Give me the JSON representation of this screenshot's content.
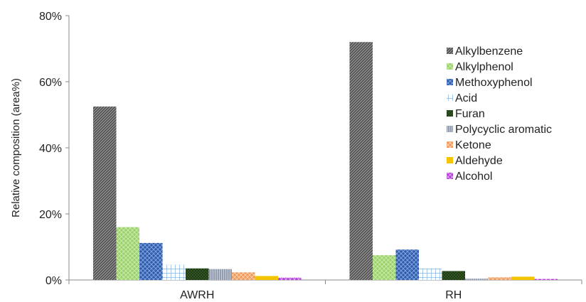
{
  "chart_data": {
    "type": "bar",
    "title": "",
    "xlabel": "",
    "ylabel": "Relative  composition (area%)",
    "ylim": [
      0,
      80
    ],
    "yticks": [
      "0%",
      "20%",
      "40%",
      "60%",
      "80%"
    ],
    "categories": [
      "AWRH",
      "RH"
    ],
    "legend_position": "right",
    "grid": false,
    "series": [
      {
        "name": "Alkylbenzene",
        "color": "#8c8c8c",
        "pattern": "diagonal-dark",
        "values": [
          52.5,
          72.0
        ]
      },
      {
        "name": "Alkylphenol",
        "color": "#9bd06a",
        "pattern": "crosshatch",
        "values": [
          16.0,
          7.5
        ]
      },
      {
        "name": "Methoxyphenol",
        "color": "#2f5aa8",
        "pattern": "diamond",
        "values": [
          11.2,
          9.2
        ]
      },
      {
        "name": "Acid",
        "color": "#9fc8ee",
        "pattern": "grid",
        "values": [
          4.6,
          3.5
        ]
      },
      {
        "name": "Furan",
        "color": "#1f3d14",
        "pattern": "dots",
        "values": [
          3.5,
          2.7
        ]
      },
      {
        "name": "Polycyclic aromatic",
        "color": "#8e9aae",
        "pattern": "vertical",
        "values": [
          3.3,
          0.4
        ]
      },
      {
        "name": "Ketone",
        "color": "#f0995a",
        "pattern": "crosshatch",
        "values": [
          2.3,
          0.8
        ]
      },
      {
        "name": "Aldehyde",
        "color": "#f5c400",
        "pattern": "solid",
        "values": [
          1.2,
          1.0
        ]
      },
      {
        "name": "Alcohol",
        "color": "#b040d8",
        "pattern": "diamond",
        "values": [
          0.7,
          0.3
        ]
      }
    ]
  }
}
